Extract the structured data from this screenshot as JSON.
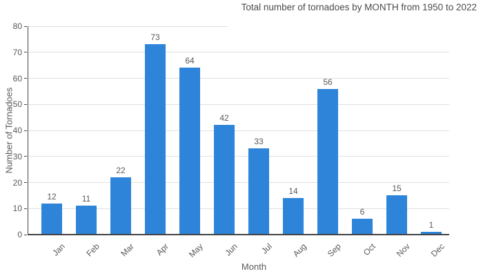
{
  "chart_data": {
    "type": "bar",
    "title": "Total number of tornadoes by MONTH from 1950 to 2022",
    "xlabel": "Month",
    "ylabel": "Number of Tornadoes",
    "categories": [
      "Jan",
      "Feb",
      "Mar",
      "Apr",
      "May",
      "Jun",
      "Jul",
      "Aug",
      "Sep",
      "Oct",
      "Nov",
      "Dec"
    ],
    "values": [
      12,
      11,
      22,
      73,
      64,
      42,
      33,
      14,
      56,
      6,
      15,
      1
    ],
    "ylim": [
      0,
      80
    ],
    "yticks": [
      0,
      10,
      20,
      30,
      40,
      50,
      60,
      70,
      80
    ],
    "grid": true,
    "legend_position": "none",
    "value_labels_shown": true
  },
  "colors": {
    "bar": "#2d84d8",
    "grid": "#e0e0e0",
    "axis": "#424242",
    "label_text": "#595959",
    "title_text": "#4a4a4a",
    "background": "#ffffff"
  }
}
